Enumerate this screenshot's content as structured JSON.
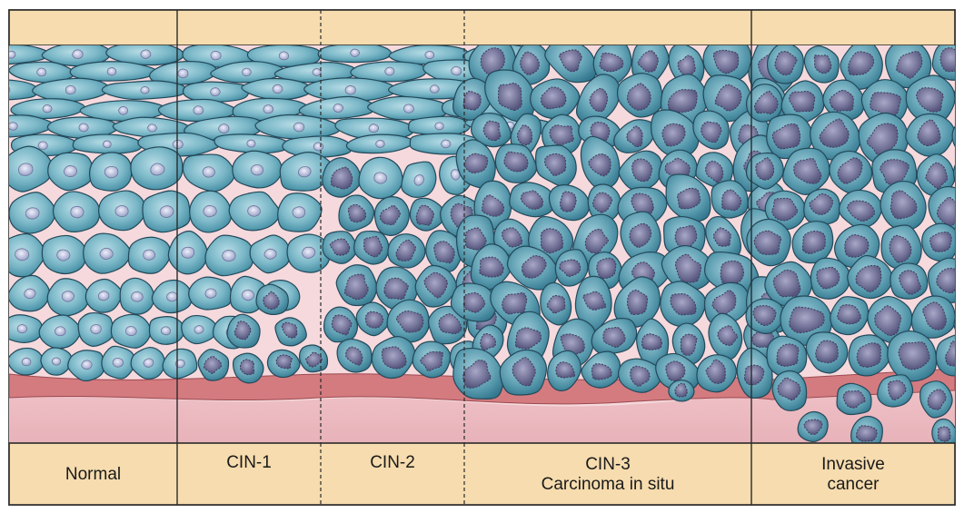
{
  "stages": [
    {
      "id": "normal",
      "lines": [
        "Normal"
      ]
    },
    {
      "id": "cin1",
      "lines": [
        "CIN-1"
      ]
    },
    {
      "id": "cin2",
      "lines": [
        "CIN-2"
      ]
    },
    {
      "id": "cin3",
      "lines": [
        "CIN-3",
        "Carcinoma in situ"
      ]
    },
    {
      "id": "invasive",
      "lines": [
        "Invasive",
        "cancer"
      ]
    }
  ],
  "colors": {
    "header_band": "#f6dcae",
    "footer_band": "#f6dcae",
    "background_epithelium": "#f5d9dc",
    "normal_cell_fill": "#62a6b8",
    "normal_cell_light": "#a9d3de",
    "nucleus_normal": "#b9c1dd",
    "nucleus_dysplastic": "#6f6f96",
    "basement_membrane": "#d47b80",
    "stroma": "#e7b6bd",
    "outline": "#2b2b2b"
  }
}
